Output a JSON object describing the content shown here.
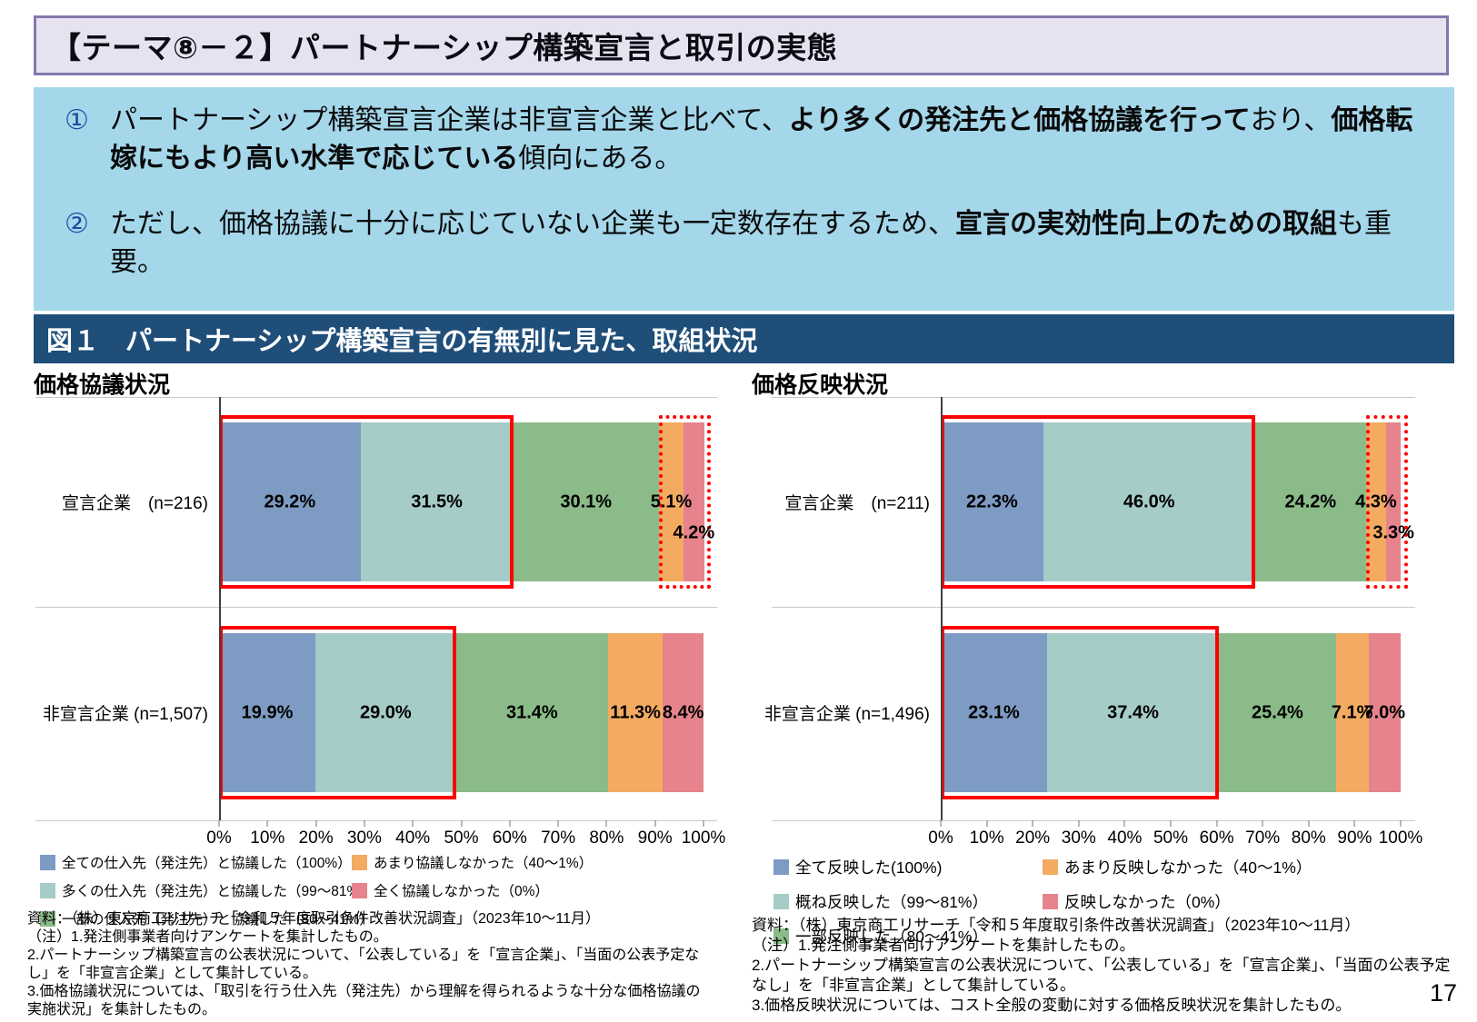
{
  "slide": {
    "title": "【テーマ⑧－２】パートナーシップ構築宣言と取引の実態",
    "page_number": "17"
  },
  "summary": {
    "points": [
      {
        "marker": "①",
        "pre": "パートナーシップ構築宣言企業は非宣言企業と比べて、",
        "bold1": "より多くの発注先と価格協議を行って",
        "mid": "おり、",
        "bold2": "価格転嫁にもより高い水準で応じている",
        "post": "傾向にある。"
      },
      {
        "marker": "②",
        "pre": "ただし、価格協議に十分に応じていない企業も一定数存在するため、",
        "bold1": "宣言の実効性向上のための取組",
        "mid": "",
        "bold2": "",
        "post": "も重要。"
      }
    ]
  },
  "figure": {
    "title": "図１　パートナーシップ構築宣言の有無別に見た、取組状況"
  },
  "chart_data": [
    {
      "type": "stacked_bar_horizontal",
      "title": "価格協議状況",
      "xlim": [
        0,
        100
      ],
      "x_ticks": [
        "0%",
        "10%",
        "20%",
        "30%",
        "40%",
        "50%",
        "60%",
        "70%",
        "80%",
        "90%",
        "100%"
      ],
      "rows": [
        {
          "category_label": "宣言企業　(n=216)",
          "values": [
            29.2,
            31.5,
            30.1,
            5.1,
            4.2
          ],
          "labels": [
            "29.2%",
            "31.5%",
            "30.1%",
            "5.1%",
            "4.2%"
          ]
        },
        {
          "category_label": "非宣言企業 (n=1,507)",
          "values": [
            19.9,
            29.0,
            31.4,
            11.3,
            8.4
          ],
          "labels": [
            "19.9%",
            "29.0%",
            "31.4%",
            "11.3%",
            "8.4%"
          ]
        }
      ],
      "legend": [
        {
          "label": "全ての仕入先（発注先）と協議した（100%）",
          "color": "#7D9BC3"
        },
        {
          "label": "多くの仕入先（発注先）と協議した（99～81%）",
          "color": "#A6CCC8"
        },
        {
          "label": "一部の仕入先（発注先）と協議した（80～41%）",
          "color": "#8ABB88"
        },
        {
          "label": "あまり協議しなかった（40～1%）",
          "color": "#F3AB62"
        },
        {
          "label": "全く協議しなかった（0%）",
          "color": "#E6838C"
        }
      ],
      "annotations": [
        {
          "shape": "solid-red-box",
          "row": 0,
          "from_pct": 0,
          "to_pct": 60.7
        },
        {
          "shape": "dotted-red-box",
          "row": 0,
          "from_pct": 90.8,
          "to_pct": 100
        },
        {
          "shape": "solid-red-box",
          "row": 1,
          "from_pct": 0,
          "to_pct": 48.9
        }
      ],
      "source": "資料：（株）東京商工リサーチ「令和５年度取引条件改善状況調査」（2023年10～11月）",
      "notes": [
        "（注）1.発注側事業者向けアンケートを集計したもの。",
        "2.パートナーシップ構築宣言の公表状況について、「公表している」を「宣言企業」、「当面の公表予定なし」を「非宣言企業」として集計している。",
        "3.価格協議状況については、「取引を行う仕入先（発注先）から理解を得られるような十分な価格協議の実施状況」を集計したもの。"
      ]
    },
    {
      "type": "stacked_bar_horizontal",
      "title": "価格反映状況",
      "xlim": [
        0,
        100
      ],
      "x_ticks": [
        "0%",
        "10%",
        "20%",
        "30%",
        "40%",
        "50%",
        "60%",
        "70%",
        "80%",
        "90%",
        "100%"
      ],
      "rows": [
        {
          "category_label": "宣言企業　(n=211)",
          "values": [
            22.3,
            46.0,
            24.2,
            4.3,
            3.3
          ],
          "labels": [
            "22.3%",
            "46.0%",
            "24.2%",
            "4.3%",
            "3.3%"
          ]
        },
        {
          "category_label": "非宣言企業 (n=1,496)",
          "values": [
            23.1,
            37.4,
            25.4,
            7.1,
            7.0
          ],
          "labels": [
            "23.1%",
            "37.4%",
            "25.4%",
            "7.1%",
            "7.0%"
          ]
        }
      ],
      "legend": [
        {
          "label": "全て反映した(100%)",
          "color": "#7D9BC3"
        },
        {
          "label": "概ね反映した（99～81%）",
          "color": "#A6CCC8"
        },
        {
          "label": "一部反映した（80～41%）",
          "color": "#8ABB88"
        },
        {
          "label": "あまり反映しなかった（40～1%）",
          "color": "#F3AB62"
        },
        {
          "label": "反映しなかった（0%）",
          "color": "#E6838C"
        }
      ],
      "annotations": [
        {
          "shape": "solid-red-box",
          "row": 0,
          "from_pct": 0,
          "to_pct": 68.3
        },
        {
          "shape": "dotted-red-box",
          "row": 0,
          "from_pct": 92.5,
          "to_pct": 100
        },
        {
          "shape": "solid-red-box",
          "row": 1,
          "from_pct": 0,
          "to_pct": 60.5
        }
      ],
      "source": "資料：（株）東京商工リサーチ「令和５年度取引条件改善状況調査」（2023年10～11月）",
      "notes": [
        "（注）1.発注側事業者向けアンケートを集計したもの。",
        "2.パートナーシップ構築宣言の公表状況について、「公表している」を「宣言企業」、「当面の公表予定なし」を「非宣言企業」として集計している。",
        "3.価格反映状況については、コスト全般の変動に対する価格反映状況を集計したもの。"
      ]
    }
  ],
  "colors": {
    "accent_navy": "#1F4E79",
    "summary_bg": "#A4D7EA",
    "header_bg": "#E6E2F0",
    "header_border": "#8477AE",
    "marker_blue": "#1F4BA0",
    "emphasis_red": "#FF0000"
  }
}
